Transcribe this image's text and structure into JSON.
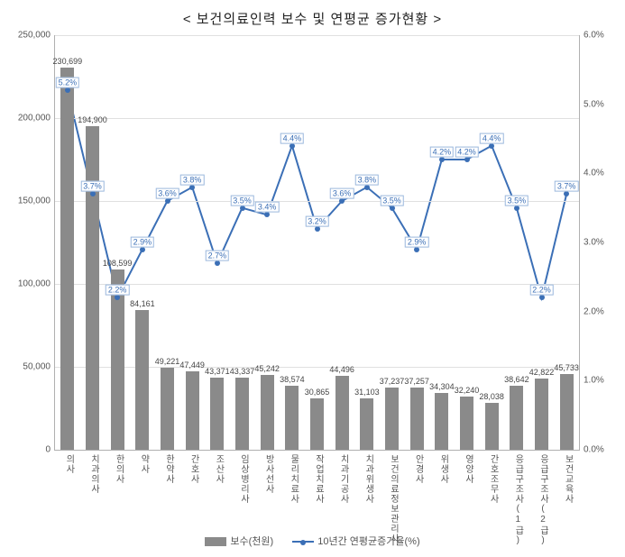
{
  "chart": {
    "title": "< 보건의료인력 보수 및 연평균 증가현황 >",
    "type": "bar+line",
    "y_left": {
      "min": 0,
      "max": 250000,
      "step": 50000,
      "format": "comma"
    },
    "y_right": {
      "min": 0,
      "max": 6.0,
      "step": 1.0,
      "suffix": "%"
    },
    "bar_color": "#8a8a8a",
    "line_color": "#3b6fb6",
    "grid_color": "#e0e0e0",
    "background_color": "#ffffff",
    "bar_width_ratio": 0.55,
    "categories": [
      "의사",
      "치과의사",
      "한의사",
      "약사",
      "한약사",
      "간호사",
      "조산사",
      "임상병리사",
      "방사선사",
      "물리치료사",
      "작업치료사",
      "치과기공사",
      "치과위생사",
      "보건의료정보관리사",
      "안경사",
      "위생사",
      "영양사",
      "간호조무사",
      "응급구조사(1급)",
      "응급구조사(2급)",
      "보건교육사"
    ],
    "bar_values": [
      230699,
      194900,
      108599,
      84161,
      49221,
      47449,
      43371,
      43337,
      45242,
      38574,
      30865,
      44496,
      31103,
      37237,
      37257,
      34304,
      32240,
      28038,
      38642,
      42822,
      45733
    ],
    "line_values": [
      5.2,
      3.7,
      2.2,
      2.9,
      3.6,
      3.8,
      2.7,
      3.5,
      3.4,
      4.4,
      3.2,
      3.6,
      3.8,
      3.5,
      2.9,
      4.2,
      4.2,
      4.4,
      3.5,
      2.2,
      3.7
    ],
    "legend": {
      "bar": "보수(천원)",
      "line": "10년간 연평균증가율(%)"
    }
  }
}
